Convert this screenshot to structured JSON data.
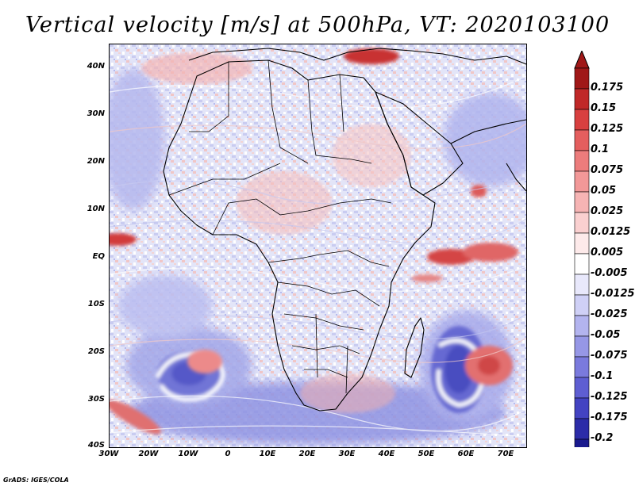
{
  "title": "Vertical velocity [m/s] at 500hPa, VT: 2020103100",
  "credit": "GrADS: IGES/COLA",
  "map": {
    "lat_labels": [
      "40N",
      "30N",
      "20N",
      "10N",
      "EQ",
      "10S",
      "20S",
      "30S",
      "40S"
    ],
    "lon_labels": [
      "30W",
      "20W",
      "10W",
      "0",
      "10E",
      "20E",
      "30E",
      "40E",
      "50E",
      "60E",
      "70E"
    ],
    "lon_range": [
      -30,
      75
    ],
    "lat_range": [
      -40,
      44
    ],
    "background_color": "#dfe2f7",
    "features": [
      {
        "name": "southwest-indian-ocean-cyclonic-swirl",
        "type": "descent",
        "lon": 58,
        "lat": -23
      },
      {
        "name": "south-atlantic-cyclonic-swirl",
        "type": "descent",
        "lon": -9,
        "lat": -24
      },
      {
        "name": "indian-ocean-updraft-band",
        "type": "ascent",
        "lon": 56,
        "lat": 0
      },
      {
        "name": "atlantic-itcz-updraft",
        "type": "ascent",
        "lon": -27,
        "lat": 3
      },
      {
        "name": "anticyclone-updraft-east-madagascar",
        "type": "ascent",
        "lon": 63,
        "lat": -23
      },
      {
        "name": "black-sea-updraft",
        "type": "ascent",
        "lon": 36,
        "lat": 42
      }
    ]
  },
  "colorbar": {
    "labels": [
      "0.175",
      "0.15",
      "0.125",
      "0.1",
      "0.075",
      "0.05",
      "0.025",
      "0.0125",
      "0.005",
      "-0.005",
      "-0.0125",
      "-0.025",
      "-0.05",
      "-0.075",
      "-0.1",
      "-0.125",
      "-0.175",
      "-0.2"
    ],
    "colors": [
      "#a01818",
      "#c02828",
      "#d84040",
      "#e45e5e",
      "#ec7c7c",
      "#f29898",
      "#f6b4b4",
      "#fad0d0",
      "#fdeaea",
      "#ffffff",
      "#e8e8fb",
      "#cfd0f6",
      "#b3b4ef",
      "#9697e6",
      "#7a7add",
      "#5e5ed2",
      "#4343c2",
      "#2c2ca8",
      "#1a1a8e"
    ],
    "arrow_top_color": "#a01818",
    "arrow_bottom_color": "#1a1a8e"
  }
}
